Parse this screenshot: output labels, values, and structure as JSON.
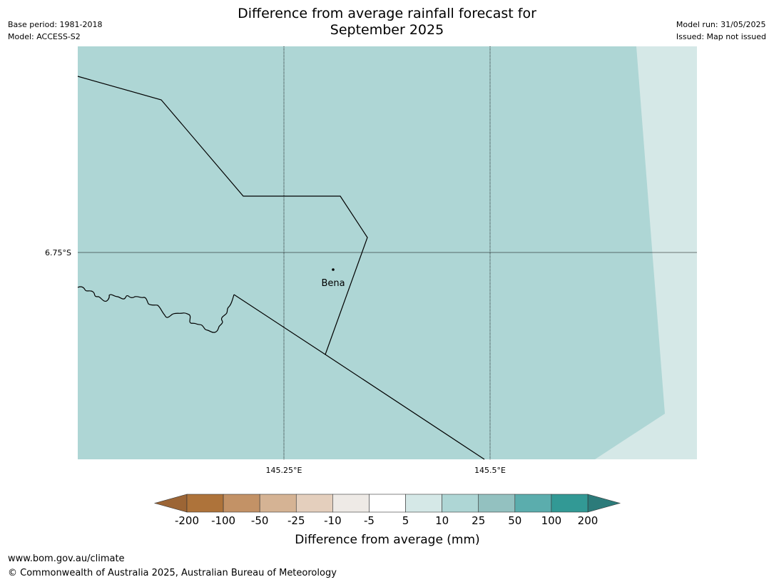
{
  "header": {
    "base_period": "Base period: 1981-2018",
    "model": "Model: ACCESS-S2",
    "title_line1": "Difference from average rainfall forecast for",
    "title_line2": "September 2025",
    "model_run": "Model run: 31/05/2025",
    "issued": "Issued: Map not issued"
  },
  "map": {
    "lat_label": "6.75°S",
    "lon_labels": [
      "145.25°E",
      "145.5°E"
    ],
    "place_name": "Bena",
    "fill_main": "#aed6d5",
    "fill_light": "#d5e8e7",
    "gridline_color": "#000000"
  },
  "colorbar": {
    "title": "Difference from average (mm)",
    "tick_labels": [
      "-200",
      "-100",
      "-50",
      "-25",
      "-10",
      "-5",
      "5",
      "10",
      "25",
      "50",
      "100",
      "200"
    ],
    "extend_low_color": "#9c6535",
    "extend_high_color": "#2c7b7a",
    "colors": [
      "#ae733a",
      "#c39266",
      "#d5b394",
      "#e4cfbd",
      "#eeeae6",
      "#ffffff",
      "#d5e8e7",
      "#aed6d5",
      "#93c1c0",
      "#5badad",
      "#329995"
    ]
  },
  "footer": {
    "url": "www.bom.gov.au/climate",
    "copyright": "© Commonwealth of Australia 2025, Australian Bureau of Meteorology"
  }
}
